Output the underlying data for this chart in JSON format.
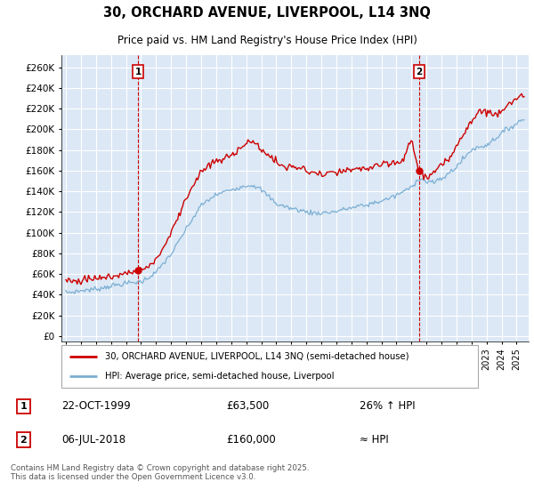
{
  "title_line1": "30, ORCHARD AVENUE, LIVERPOOL, L14 3NQ",
  "title_line2": "Price paid vs. HM Land Registry's House Price Index (HPI)",
  "background_color": "#ffffff",
  "plot_bg_color": "#dce8f5",
  "grid_color": "#ffffff",
  "line1_color": "#cc0000",
  "line2_color": "#7bafd4",
  "legend_label1": "30, ORCHARD AVENUE, LIVERPOOL, L14 3NQ (semi-detached house)",
  "legend_label2": "HPI: Average price, semi-detached house, Liverpool",
  "annotation1_label": "1",
  "annotation1_date": "22-OCT-1999",
  "annotation1_price": "£63,500",
  "annotation1_hpi": "26% ↑ HPI",
  "annotation2_label": "2",
  "annotation2_date": "06-JUL-2018",
  "annotation2_price": "£160,000",
  "annotation2_hpi": "≈ HPI",
  "footer": "Contains HM Land Registry data © Crown copyright and database right 2025.\nThis data is licensed under the Open Government Licence v3.0.",
  "yticks": [
    0,
    20000,
    40000,
    60000,
    80000,
    100000,
    120000,
    140000,
    160000,
    180000,
    200000,
    220000,
    240000,
    260000
  ],
  "ytick_labels": [
    "£0",
    "£20K",
    "£40K",
    "£60K",
    "£80K",
    "£100K",
    "£120K",
    "£140K",
    "£160K",
    "£180K",
    "£200K",
    "£220K",
    "£240K",
    "£260K"
  ],
  "xmin": 1994.7,
  "xmax": 2025.8,
  "ymin": -5000,
  "ymax": 272000,
  "marker1_x": 1999.81,
  "marker1_y": 63500,
  "marker2_x": 2018.51,
  "marker2_y": 160000,
  "vline1_x": 1999.81,
  "vline2_x": 2018.51
}
